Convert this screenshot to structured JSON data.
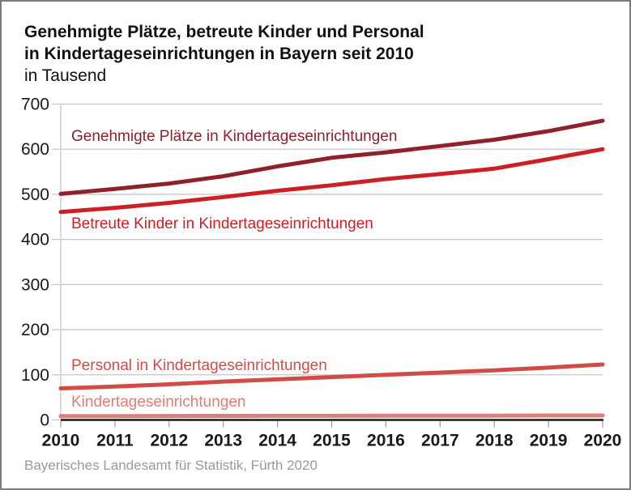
{
  "frame": {
    "border_color": "#7c7c7c",
    "background": "#ffffff"
  },
  "title": {
    "line1": "Genehmigte Plätze, betreute Kinder und Personal",
    "line2": "in Kindertageseinrichtungen in Bayern seit 2010",
    "subtitle": "in Tausend"
  },
  "footer": {
    "source": "Bayerisches Landesamt für Statistik, Fürth 2020"
  },
  "colors": {
    "grid": "#c8c8c8",
    "axis": "#1a1a1a",
    "tick": "#999999",
    "axis_label": "#1a1a1a"
  },
  "chart_data": {
    "type": "line",
    "title": "Genehmigte Plätze, betreute Kinder und Personal in Kindertageseinrichtungen in Bayern seit 2010",
    "xlabel": "",
    "ylabel": "in Tausend",
    "grid": true,
    "legend_position": "inline-labels",
    "ylim": [
      0,
      700
    ],
    "ytick_step": 100,
    "ytick_labels": [
      "0",
      "100",
      "200",
      "300",
      "400",
      "500",
      "600",
      "700"
    ],
    "x": [
      2010,
      2011,
      2012,
      2013,
      2014,
      2015,
      2016,
      2017,
      2018,
      2019,
      2020
    ],
    "xtick_labels": [
      "2010",
      "2011",
      "2012",
      "2013",
      "2014",
      "2015",
      "2016",
      "2017",
      "2018",
      "2019",
      "2020"
    ],
    "series": [
      {
        "name": "Genehmigte Plätze in Kindertageseinrichtungen",
        "color": "#8e212b",
        "values": [
          501,
          512,
          524,
          540,
          562,
          581,
          593,
          607,
          621,
          640,
          663
        ]
      },
      {
        "name": "Betreute Kinder in Kindertageseinrichtungen",
        "color": "#cb2026",
        "values": [
          461,
          470,
          481,
          494,
          508,
          520,
          534,
          545,
          557,
          578,
          600
        ]
      },
      {
        "name": "Personal in Kindertageseinrichtungen",
        "color": "#d14b47",
        "values": [
          70,
          74,
          79,
          85,
          90,
          95,
          100,
          105,
          110,
          116,
          123
        ]
      },
      {
        "name": "Kindertageseinrichtungen",
        "color": "#e07d78",
        "values": [
          8.6,
          8.7,
          8.8,
          9.0,
          9.1,
          9.2,
          9.4,
          9.5,
          9.6,
          9.8,
          9.9
        ]
      }
    ]
  }
}
